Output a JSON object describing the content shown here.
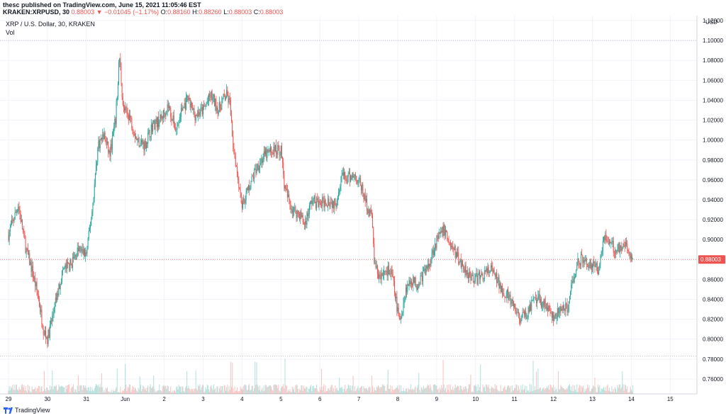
{
  "header": {
    "publisher": "thesc published on TradingView.com, June 15, 2021 11:05:46 EST",
    "symbol": "KRAKEN:XRPUSD, 30",
    "change": "0.88003 ▼ −0.01045 (−1.17%)",
    "o_label": "O:",
    "o_value": "0.88160",
    "h_label": "H:",
    "h_value": "0.88260",
    "l_label": "L:",
    "l_value": "0.88003",
    "c_label": "C:",
    "c_value": "0.88003"
  },
  "legend": {
    "title": "XRP / U.S. Dollar, 30, KRAKEN",
    "volume_label": "Vol"
  },
  "footer": {
    "brand": "TradingView"
  },
  "colors": {
    "up": "#26a69a",
    "down": "#ef5350",
    "grid": "#f0f3fa",
    "axis_text": "#131722",
    "last_price_bg": "#ef5350"
  },
  "chart_data": {
    "type": "candlestick",
    "title": "XRP / U.S. Dollar, 30, KRAKEN",
    "currency_label": "USD",
    "ylim": [
      0.745,
      1.125
    ],
    "y_ticks": [
      "1.12000",
      "1.10000",
      "1.08000",
      "1.06000",
      "1.04000",
      "1.02000",
      "1.00000",
      "0.98000",
      "0.96000",
      "0.94000",
      "0.92000",
      "0.90000",
      "0.86000",
      "0.84000",
      "0.82000",
      "0.80000",
      "0.78000",
      "0.76000"
    ],
    "x_ticks": [
      "29",
      "30",
      "31",
      "Jun",
      "2",
      "3",
      "4",
      "5",
      "6",
      "7",
      "8",
      "9",
      "10",
      "11",
      "12",
      "13",
      "14",
      "15"
    ],
    "last_price": "0.88003",
    "reference_lines": [
      1.1,
      0.88003,
      0.783
    ],
    "series": [
      {
        "values": [
          [
            0.0,
            0.905
          ],
          [
            0.25,
            0.935
          ],
          [
            0.45,
            0.89
          ],
          [
            0.6,
            0.87
          ],
          [
            0.75,
            0.845
          ],
          [
            0.9,
            0.81
          ],
          [
            1.0,
            0.8
          ],
          [
            1.2,
            0.835
          ],
          [
            1.4,
            0.87
          ],
          [
            1.6,
            0.875
          ],
          [
            1.8,
            0.89
          ],
          [
            2.0,
            0.885
          ],
          [
            2.15,
            0.93
          ],
          [
            2.3,
            0.995
          ],
          [
            2.45,
            1.005
          ],
          [
            2.6,
            0.985
          ],
          [
            2.75,
            1.02
          ],
          [
            2.85,
            1.085
          ],
          [
            2.95,
            1.03
          ],
          [
            3.1,
            1.025
          ],
          [
            3.3,
            1.0
          ],
          [
            3.5,
            0.995
          ],
          [
            3.7,
            1.015
          ],
          [
            3.9,
            1.02
          ],
          [
            4.1,
            1.035
          ],
          [
            4.3,
            1.01
          ],
          [
            4.45,
            1.03
          ],
          [
            4.6,
            1.04
          ],
          [
            4.8,
            1.025
          ],
          [
            5.0,
            1.03
          ],
          [
            5.2,
            1.045
          ],
          [
            5.4,
            1.03
          ],
          [
            5.5,
            1.04
          ],
          [
            5.6,
            1.045
          ],
          [
            5.7,
            1.035
          ],
          [
            5.75,
            1.0
          ],
          [
            5.85,
            0.975
          ],
          [
            6.0,
            0.935
          ],
          [
            6.2,
            0.955
          ],
          [
            6.4,
            0.975
          ],
          [
            6.6,
            0.985
          ],
          [
            6.8,
            0.99
          ],
          [
            7.0,
            0.99
          ],
          [
            7.1,
            0.95
          ],
          [
            7.3,
            0.93
          ],
          [
            7.5,
            0.925
          ],
          [
            7.6,
            0.915
          ],
          [
            7.8,
            0.94
          ],
          [
            8.0,
            0.935
          ],
          [
            8.2,
            0.94
          ],
          [
            8.4,
            0.935
          ],
          [
            8.55,
            0.965
          ],
          [
            8.7,
            0.96
          ],
          [
            8.85,
            0.965
          ],
          [
            9.0,
            0.96
          ],
          [
            9.2,
            0.935
          ],
          [
            9.35,
            0.92
          ],
          [
            9.4,
            0.875
          ],
          [
            9.55,
            0.86
          ],
          [
            9.7,
            0.87
          ],
          [
            9.85,
            0.865
          ],
          [
            9.95,
            0.84
          ],
          [
            10.05,
            0.815
          ],
          [
            10.2,
            0.85
          ],
          [
            10.35,
            0.86
          ],
          [
            10.5,
            0.855
          ],
          [
            10.65,
            0.865
          ],
          [
            10.8,
            0.875
          ],
          [
            10.95,
            0.895
          ],
          [
            11.1,
            0.905
          ],
          [
            11.2,
            0.91
          ],
          [
            11.35,
            0.895
          ],
          [
            11.5,
            0.885
          ],
          [
            11.65,
            0.875
          ],
          [
            11.85,
            0.865
          ],
          [
            12.0,
            0.86
          ],
          [
            12.2,
            0.865
          ],
          [
            12.4,
            0.87
          ],
          [
            12.6,
            0.855
          ],
          [
            12.8,
            0.845
          ],
          [
            13.0,
            0.83
          ],
          [
            13.15,
            0.82
          ],
          [
            13.3,
            0.825
          ],
          [
            13.45,
            0.835
          ],
          [
            13.6,
            0.84
          ],
          [
            13.8,
            0.835
          ],
          [
            14.0,
            0.82
          ],
          [
            14.2,
            0.83
          ],
          [
            14.35,
            0.83
          ],
          [
            14.5,
            0.86
          ],
          [
            14.65,
            0.88
          ],
          [
            14.8,
            0.88
          ],
          [
            14.95,
            0.875
          ],
          [
            15.15,
            0.87
          ],
          [
            15.3,
            0.905
          ],
          [
            15.45,
            0.895
          ],
          [
            15.6,
            0.89
          ],
          [
            15.75,
            0.895
          ],
          [
            15.9,
            0.89
          ],
          [
            16.0,
            0.885
          ],
          [
            16.05,
            0.88
          ]
        ]
      }
    ]
  }
}
